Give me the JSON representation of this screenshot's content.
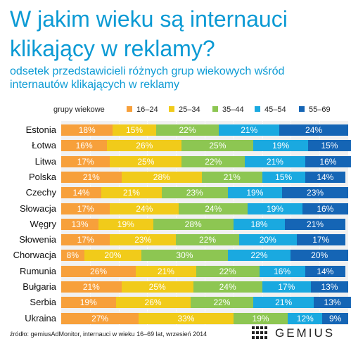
{
  "title_line1": "W jakim wieku są internauci",
  "title_line2": "klikający w reklamy?",
  "subtitle_line1": "odsetek przedstawicieli różnych grup wiekowych wśród",
  "subtitle_line2": "internautów klikających w reklamy",
  "footer": "źródło: gemiusAdMonitor, internauci w wieku 16–69 lat, wrzesień 2014",
  "logo_text": "GEMIUS",
  "chart_data": {
    "type": "bar",
    "orientation": "horizontal",
    "stacked": true,
    "legend_title": "grupy wiekowe",
    "legend_position": "top",
    "xlim": [
      0,
      100
    ],
    "categories": [
      "Estonia",
      "Łotwa",
      "Litwa",
      "Polska",
      "Czechy",
      "Słowacja",
      "Węgry",
      "Słowenia",
      "Chorwacja",
      "Rumunia",
      "Bułgaria",
      "Serbia",
      "Ukraina"
    ],
    "series": [
      {
        "name": "16–24",
        "color": "#f7a03b",
        "values": [
          18,
          16,
          17,
          21,
          14,
          17,
          13,
          17,
          8,
          26,
          21,
          19,
          27
        ]
      },
      {
        "name": "25–34",
        "color": "#f1cb1a",
        "values": [
          15,
          26,
          25,
          28,
          21,
          24,
          19,
          23,
          20,
          21,
          25,
          26,
          33
        ]
      },
      {
        "name": "35–44",
        "color": "#8dc652",
        "values": [
          22,
          25,
          22,
          21,
          23,
          24,
          28,
          22,
          30,
          22,
          24,
          22,
          19
        ]
      },
      {
        "name": "45–54",
        "color": "#1aa9e0",
        "values": [
          21,
          19,
          21,
          15,
          19,
          19,
          18,
          20,
          22,
          16,
          17,
          21,
          12
        ]
      },
      {
        "name": "55–69",
        "color": "#1565b5",
        "values": [
          24,
          15,
          16,
          14,
          23,
          16,
          21,
          17,
          20,
          14,
          13,
          13,
          9
        ]
      }
    ],
    "value_suffix": "%"
  }
}
